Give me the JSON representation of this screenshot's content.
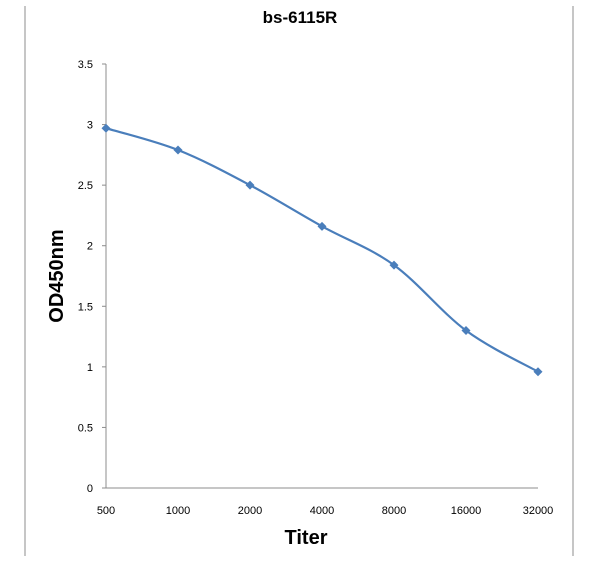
{
  "chart_data": {
    "type": "line",
    "title": "bs-6115R",
    "xlabel": "Titer",
    "ylabel": "OD450nm",
    "categories": [
      "500",
      "1000",
      "2000",
      "4000",
      "8000",
      "16000",
      "32000"
    ],
    "series": [
      {
        "values": [
          2.97,
          2.79,
          2.5,
          2.16,
          1.84,
          1.3,
          0.96
        ]
      }
    ],
    "ylim": [
      0,
      3.5
    ],
    "yticks": [
      "0",
      "0.5",
      "1",
      "1.5",
      "2",
      "2.5",
      "3",
      "3.5"
    ],
    "grid": false,
    "legend": "none",
    "line_color": "#4a7ebb",
    "marker": "diamond"
  }
}
